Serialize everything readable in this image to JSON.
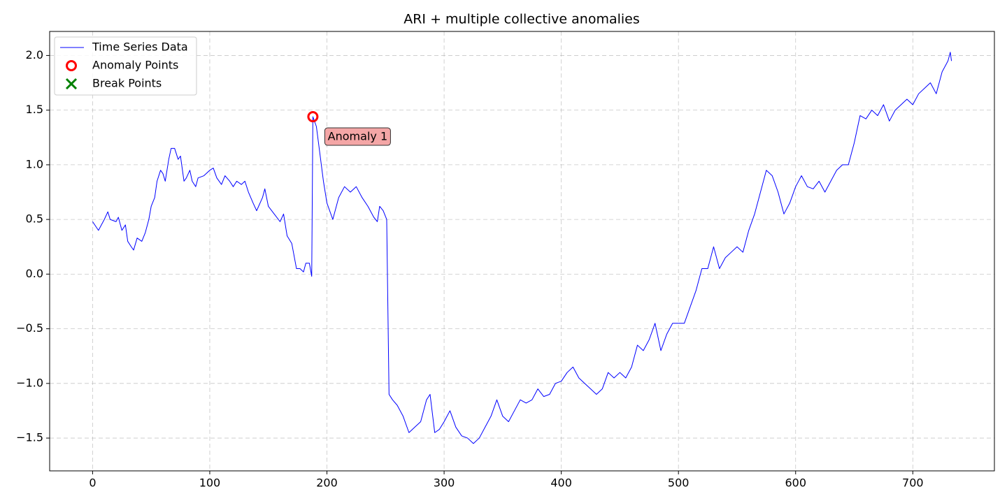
{
  "chart_data": {
    "type": "line",
    "title": "ARI + multiple collective anomalies",
    "xlim": [
      -36.65,
      769.65
    ],
    "ylim": [
      -1.8,
      2.22
    ],
    "xticks": [
      0,
      100,
      200,
      300,
      400,
      500,
      600,
      700
    ],
    "yticks": [
      {
        "value": -1.5,
        "label": "−1.5"
      },
      {
        "value": -1.0,
        "label": "−1.0"
      },
      {
        "value": -0.5,
        "label": "−0.5"
      },
      {
        "value": 0,
        "label": "0.0"
      },
      0.5,
      {
        "value": 1.0,
        "label": "1.0"
      },
      1.5,
      {
        "value": 2.0,
        "label": "2.0"
      }
    ],
    "grid": true,
    "legend": "upper left",
    "series": [
      {
        "name": "Time Series Data",
        "color": "#0000ff",
        "x": [
          0,
          5,
          10,
          13,
          15,
          20,
          22,
          25,
          28,
          30,
          33,
          35,
          38,
          42,
          45,
          48,
          50,
          53,
          55,
          58,
          60,
          62,
          65,
          67,
          70,
          73,
          75,
          78,
          80,
          83,
          85,
          88,
          90,
          95,
          100,
          103,
          106,
          110,
          113,
          117,
          120,
          123,
          127,
          130,
          133,
          137,
          140,
          145,
          147,
          150,
          155,
          160,
          163,
          166,
          170,
          174,
          177,
          180,
          182,
          185,
          187,
          188,
          191,
          194,
          197,
          200,
          205,
          210,
          215,
          220,
          225,
          230,
          235,
          240,
          243,
          245,
          248,
          251,
          253,
          256,
          260,
          265,
          270,
          275,
          280,
          285,
          288,
          292,
          296,
          300,
          305,
          310,
          315,
          320,
          325,
          330,
          335,
          340,
          345,
          350,
          355,
          360,
          365,
          370,
          375,
          380,
          385,
          390,
          395,
          400,
          405,
          410,
          415,
          420,
          425,
          430,
          435,
          440,
          445,
          450,
          455,
          460,
          465,
          470,
          475,
          480,
          485,
          490,
          495,
          500,
          505,
          510,
          515,
          520,
          525,
          530,
          535,
          540,
          545,
          550,
          555,
          560,
          565,
          570,
          575,
          580,
          585,
          590,
          595,
          600,
          605,
          610,
          615,
          620,
          625,
          630,
          635,
          640,
          645,
          650,
          655,
          660,
          665,
          670,
          675,
          680,
          685,
          690,
          695,
          700,
          705,
          710,
          715,
          720,
          725,
          730,
          732,
          733
        ],
        "values": [
          0.48,
          0.4,
          0.5,
          0.57,
          0.5,
          0.48,
          0.52,
          0.4,
          0.45,
          0.3,
          0.25,
          0.22,
          0.33,
          0.3,
          0.38,
          0.5,
          0.62,
          0.7,
          0.85,
          0.95,
          0.92,
          0.85,
          1.05,
          1.15,
          1.15,
          1.05,
          1.08,
          0.85,
          0.88,
          0.95,
          0.85,
          0.8,
          0.88,
          0.9,
          0.95,
          0.97,
          0.88,
          0.82,
          0.9,
          0.85,
          0.8,
          0.85,
          0.82,
          0.85,
          0.75,
          0.65,
          0.58,
          0.7,
          0.78,
          0.62,
          0.55,
          0.48,
          0.55,
          0.35,
          0.28,
          0.05,
          0.05,
          0.02,
          0.1,
          0.1,
          -0.02,
          1.44,
          1.35,
          1.1,
          0.85,
          0.65,
          0.5,
          0.7,
          0.8,
          0.75,
          0.8,
          0.7,
          0.62,
          0.52,
          0.48,
          0.62,
          0.58,
          0.5,
          -1.1,
          -1.15,
          -1.2,
          -1.3,
          -1.45,
          -1.4,
          -1.35,
          -1.15,
          -1.1,
          -1.45,
          -1.42,
          -1.35,
          -1.25,
          -1.4,
          -1.48,
          -1.5,
          -1.55,
          -1.5,
          -1.4,
          -1.3,
          -1.15,
          -1.3,
          -1.35,
          -1.25,
          -1.15,
          -1.18,
          -1.15,
          -1.05,
          -1.12,
          -1.1,
          -1.0,
          -0.98,
          -0.9,
          -0.85,
          -0.95,
          -1.0,
          -1.05,
          -1.1,
          -1.05,
          -0.9,
          -0.95,
          -0.9,
          -0.95,
          -0.85,
          -0.65,
          -0.7,
          -0.6,
          -0.45,
          -0.7,
          -0.55,
          -0.45,
          -0.45,
          -0.45,
          -0.3,
          -0.15,
          0.05,
          0.05,
          0.25,
          0.05,
          0.15,
          0.2,
          0.25,
          0.2,
          0.4,
          0.55,
          0.75,
          0.95,
          0.9,
          0.75,
          0.55,
          0.65,
          0.8,
          0.9,
          0.8,
          0.78,
          0.85,
          0.75,
          0.85,
          0.95,
          1.0,
          1.0,
          1.2,
          1.45,
          1.42,
          1.5,
          1.45,
          1.55,
          1.4,
          1.5,
          1.55,
          1.6,
          1.55,
          1.65,
          1.7,
          1.75,
          1.65,
          1.85,
          1.95,
          2.03,
          1.95
        ]
      },
      {
        "name": "Anomaly Points",
        "color": "#ff0000",
        "marker": "o",
        "x": [
          188
        ],
        "values": [
          1.44
        ]
      },
      {
        "name": "Break Points",
        "color": "#008000",
        "marker": "x",
        "x": [],
        "values": []
      }
    ],
    "annotations": [
      {
        "text": "Anomaly 1"
      }
    ]
  }
}
